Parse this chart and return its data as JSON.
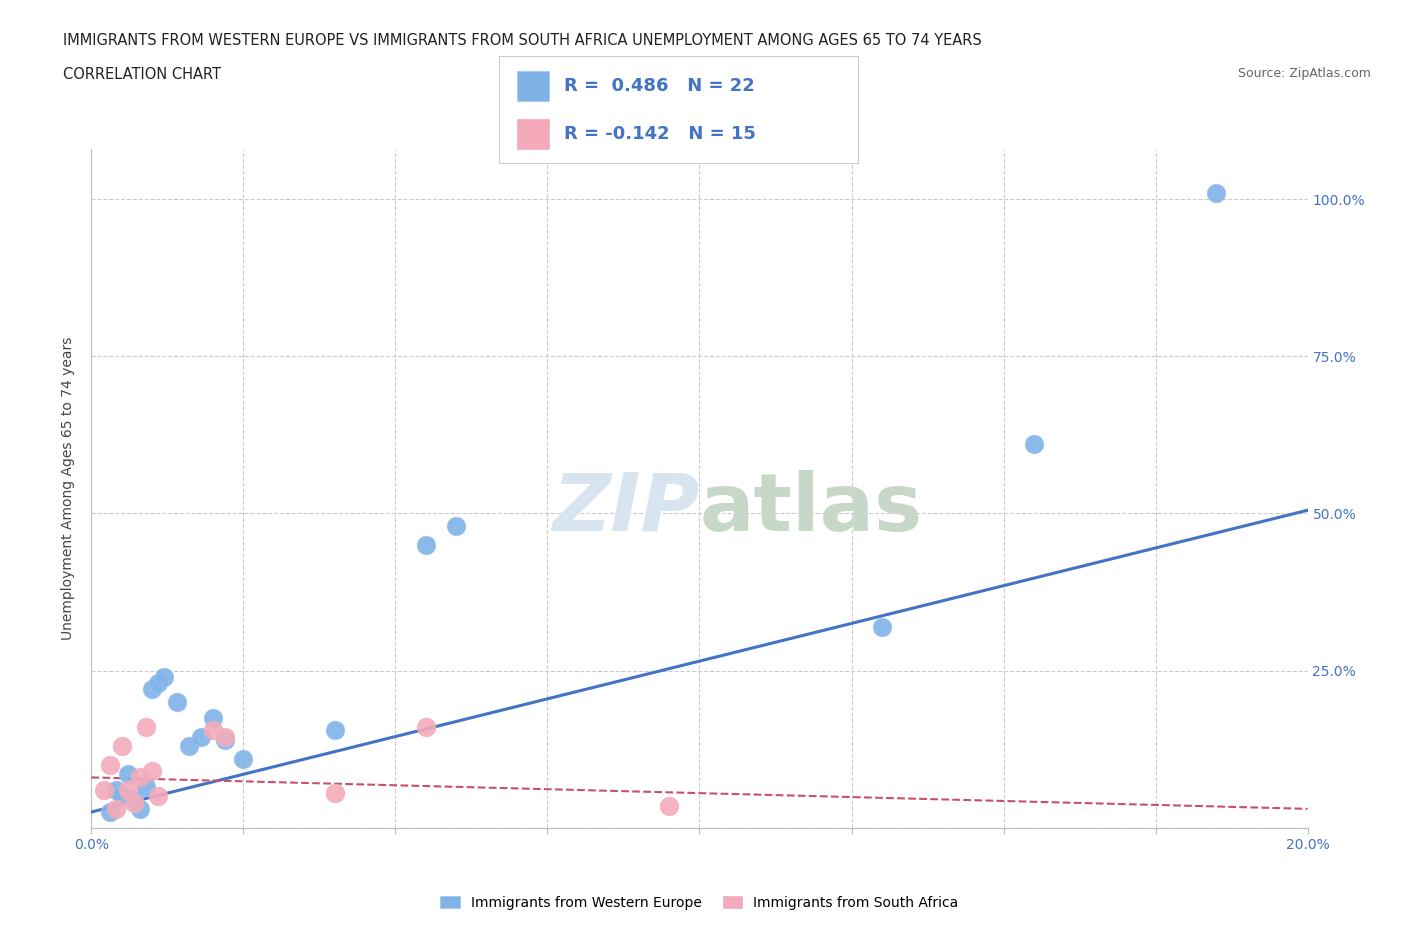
{
  "title_line1": "IMMIGRANTS FROM WESTERN EUROPE VS IMMIGRANTS FROM SOUTH AFRICA UNEMPLOYMENT AMONG AGES 65 TO 74 YEARS",
  "title_line2": "CORRELATION CHART",
  "source_text": "Source: ZipAtlas.com",
  "ylabel_text": "Unemployment Among Ages 65 to 74 years",
  "xlim": [
    0.0,
    0.2
  ],
  "ylim": [
    0.0,
    1.08
  ],
  "x_ticks": [
    0.0,
    0.025,
    0.05,
    0.075,
    0.1,
    0.125,
    0.15,
    0.175,
    0.2
  ],
  "x_tick_labels": [
    "0.0%",
    "",
    "",
    "",
    "",
    "",
    "",
    "",
    "20.0%"
  ],
  "y_ticks": [
    0.0,
    0.25,
    0.5,
    0.75,
    1.0
  ],
  "y_tick_labels": [
    "",
    "25.0%",
    "50.0%",
    "75.0%",
    "100.0%"
  ],
  "blue_color": "#7FB3E8",
  "pink_color": "#F4AABA",
  "blue_line_color": "#4472C4",
  "pink_line_color": "#C9506A",
  "watermark_color": "#D8E4F0",
  "legend_R1": "R =  0.486",
  "legend_N1": "N = 22",
  "legend_R2": "R = -0.142",
  "legend_N2": "N = 15",
  "blue_scatter_x": [
    0.003,
    0.004,
    0.005,
    0.006,
    0.007,
    0.008,
    0.009,
    0.01,
    0.011,
    0.012,
    0.014,
    0.016,
    0.018,
    0.02,
    0.022,
    0.025,
    0.04,
    0.055,
    0.06,
    0.13,
    0.155,
    0.185
  ],
  "blue_scatter_y": [
    0.025,
    0.06,
    0.05,
    0.085,
    0.045,
    0.03,
    0.065,
    0.22,
    0.23,
    0.24,
    0.2,
    0.13,
    0.145,
    0.175,
    0.14,
    0.11,
    0.155,
    0.45,
    0.48,
    0.32,
    0.61,
    1.01
  ],
  "pink_scatter_x": [
    0.002,
    0.003,
    0.004,
    0.005,
    0.006,
    0.007,
    0.008,
    0.009,
    0.01,
    0.011,
    0.02,
    0.022,
    0.04,
    0.055,
    0.095
  ],
  "pink_scatter_y": [
    0.06,
    0.1,
    0.03,
    0.13,
    0.06,
    0.04,
    0.08,
    0.16,
    0.09,
    0.05,
    0.155,
    0.145,
    0.055,
    0.16,
    0.035
  ],
  "blue_trend_x": [
    0.0,
    0.2
  ],
  "blue_trend_y": [
    0.025,
    0.505
  ],
  "pink_trend_x": [
    0.0,
    0.2
  ],
  "pink_trend_y": [
    0.08,
    0.03
  ],
  "grid_color": "#CCCCCC",
  "background_color": "#FFFFFF",
  "legend_text_color": "#4472C4",
  "legend_label_color": "#333333"
}
